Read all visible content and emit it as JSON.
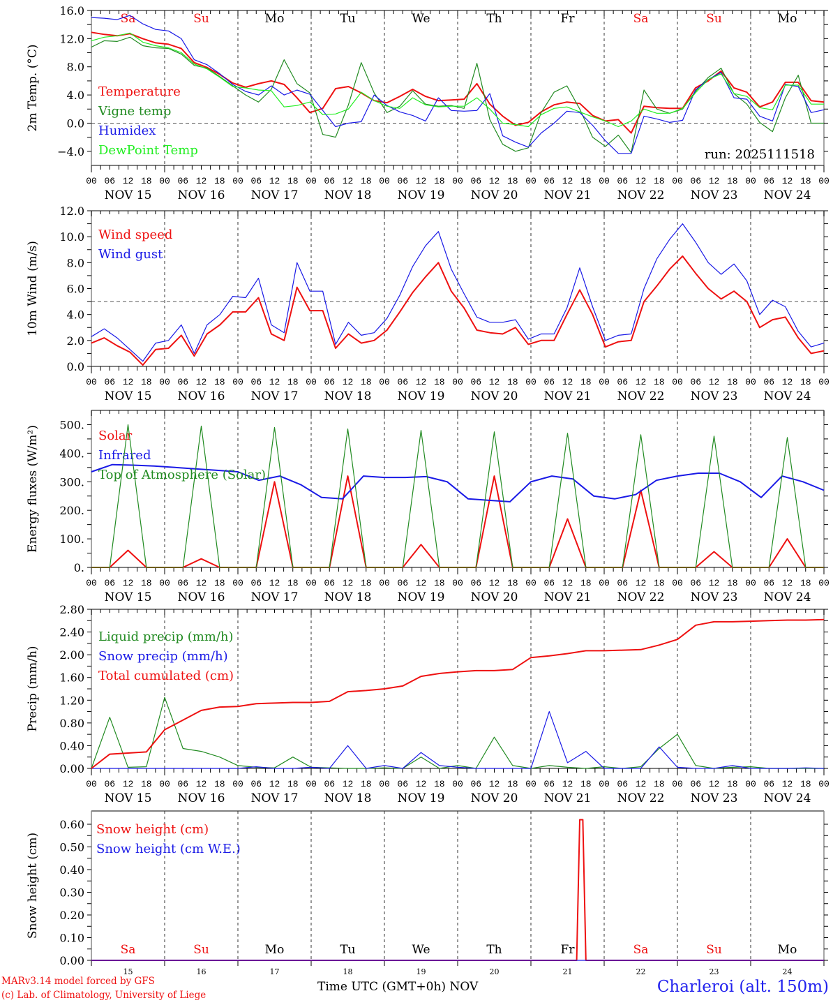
{
  "colors": {
    "red": "#ee1111",
    "green": "#228b22",
    "blue": "#1a1ae6",
    "lime": "#22ee22",
    "weekend": "#ee1111",
    "weekday": "#000000"
  },
  "days": [
    {
      "dow": "Sa",
      "date": "NOV 15",
      "num": "15",
      "weekend": true
    },
    {
      "dow": "Su",
      "date": "NOV 16",
      "num": "16",
      "weekend": true
    },
    {
      "dow": "Mo",
      "date": "NOV 17",
      "num": "17",
      "weekend": false
    },
    {
      "dow": "Tu",
      "date": "NOV 18",
      "num": "18",
      "weekend": false
    },
    {
      "dow": "We",
      "date": "NOV 19",
      "num": "19",
      "weekend": false
    },
    {
      "dow": "Th",
      "date": "NOV 20",
      "num": "20",
      "weekend": false
    },
    {
      "dow": "Fr",
      "date": "NOV 21",
      "num": "21",
      "weekend": false
    },
    {
      "dow": "Sa",
      "date": "NOV 22",
      "num": "22",
      "weekend": true
    },
    {
      "dow": "Su",
      "date": "NOV 23",
      "num": "23",
      "weekend": true
    },
    {
      "dow": "Mo",
      "date": "NOV 24",
      "num": "24",
      "weekend": false
    }
  ],
  "hour_ticks": [
    "00",
    "06",
    "12",
    "18"
  ],
  "final_tick": "00",
  "run_label": "run: 2025111518",
  "footer": {
    "model": "MARv3.14 model forced by GFS",
    "copyright": "(c) Lab. of Climatology, University of Liege",
    "xtitle": "Time UTC (GMT+0h)",
    "month": "NOV",
    "place": "Charleroi (alt. 150m)"
  },
  "chart_data": [
    {
      "type": "line",
      "ylabel": "2m Temp. (°C)",
      "ylim": [
        -6,
        16
      ],
      "yticks": [
        "16.0",
        "12.0",
        "8.0",
        "4.0",
        "0.0",
        "−4.0"
      ],
      "ytick_values": [
        16,
        12,
        8,
        4,
        0,
        -4
      ],
      "reference_line": 0,
      "x_step_hours": 6,
      "x_start": "NOV 15 00",
      "series": [
        {
          "name": "Temperature",
          "color": "red",
          "values": [
            12.9,
            12.6,
            12.4,
            12.7,
            12.0,
            11.4,
            11.2,
            10.6,
            8.6,
            7.9,
            6.9,
            5.7,
            5.1,
            5.6,
            6.0,
            5.5,
            3.6,
            1.5,
            2.1,
            4.9,
            5.2,
            4.3,
            3.2,
            2.9,
            3.8,
            4.8,
            3.8,
            3.2,
            3.3,
            3.4,
            5.6,
            2.7,
            1.0,
            -0.3,
            0.1,
            1.6,
            2.6,
            3.0,
            2.8,
            1.1,
            0.3,
            0.5,
            -1.4,
            2.4,
            2.2,
            2.1,
            2.1,
            5.0,
            6.0,
            7.4,
            5.0,
            4.4,
            2.3,
            3.0,
            5.8,
            5.8,
            3.2,
            3.0
          ]
        },
        {
          "name": "Vigne temp",
          "color": "green",
          "values": [
            10.8,
            11.7,
            11.6,
            12.2,
            11.0,
            10.7,
            10.6,
            9.8,
            8.2,
            7.8,
            6.6,
            5.3,
            4.0,
            3.0,
            4.8,
            9.0,
            5.6,
            4.3,
            -1.6,
            -2.0,
            2.6,
            8.6,
            4.3,
            1.5,
            2.4,
            4.6,
            2.7,
            2.4,
            2.5,
            2.1,
            8.5,
            0.5,
            -3.0,
            -4.0,
            -3.5,
            1.5,
            4.4,
            5.3,
            2.0,
            -2.0,
            -3.3,
            -1.7,
            -4.2,
            4.7,
            2.0,
            1.4,
            2.0,
            4.5,
            6.5,
            7.8,
            4.2,
            2.7,
            0.1,
            -1.2,
            3.6,
            6.8,
            0.0,
            0.0
          ]
        },
        {
          "name": "Humidex",
          "color": "blue",
          "values": [
            15.0,
            14.9,
            14.7,
            15.3,
            14.1,
            13.3,
            13.1,
            12.0,
            9.0,
            8.3,
            7.0,
            5.5,
            4.5,
            4.0,
            5.3,
            4.0,
            4.7,
            4.1,
            1.8,
            -0.5,
            0.0,
            0.2,
            4.0,
            2.5,
            1.6,
            1.1,
            0.3,
            3.6,
            1.8,
            1.7,
            1.8,
            4.2,
            -1.8,
            -2.7,
            -3.4,
            -1.4,
            0.0,
            1.7,
            1.5,
            -0.3,
            -2.5,
            -4.3,
            -4.3,
            1.0,
            0.6,
            0.1,
            0.4,
            4.7,
            6.2,
            7.2,
            3.6,
            3.4,
            1.0,
            0.3,
            5.5,
            5.2,
            1.5,
            1.9
          ]
        },
        {
          "name": "DewPoint Temp",
          "color": "lime",
          "values": [
            11.7,
            12.2,
            12.4,
            12.8,
            11.5,
            11.0,
            10.7,
            10.0,
            8.4,
            7.7,
            6.5,
            5.2,
            5.0,
            4.7,
            4.6,
            2.3,
            2.5,
            3.0,
            1.2,
            1.3,
            2.0,
            4.4,
            3.2,
            2.4,
            2.1,
            3.6,
            2.6,
            2.3,
            2.4,
            2.4,
            3.6,
            2.0,
            0.0,
            -0.2,
            -0.5,
            1.2,
            2.1,
            2.3,
            1.6,
            0.9,
            0.3,
            -0.5,
            0.3,
            2.0,
            1.4,
            1.4,
            2.1,
            4.3,
            6.2,
            7.0,
            4.2,
            3.8,
            2.2,
            1.9,
            5.4,
            5.4,
            2.7,
            2.7
          ]
        }
      ]
    },
    {
      "type": "line",
      "ylabel": "10m Wind (m/s)",
      "ylim": [
        0,
        12
      ],
      "yticks": [
        "12.0",
        "10.0",
        "8.0",
        "6.0",
        "4.0",
        "2.0",
        "0.0"
      ],
      "ytick_values": [
        12,
        10,
        8,
        6,
        4,
        2,
        0
      ],
      "reference_line": 5,
      "x_step_hours": 6,
      "x_start": "NOV 15 00",
      "series": [
        {
          "name": "Wind speed",
          "color": "red",
          "values": [
            1.8,
            2.2,
            1.6,
            1.1,
            0.1,
            1.3,
            1.4,
            2.4,
            0.8,
            2.5,
            3.2,
            4.2,
            4.2,
            5.3,
            2.5,
            2.0,
            6.1,
            4.3,
            4.3,
            1.4,
            2.5,
            1.8,
            2.0,
            2.8,
            4.2,
            5.7,
            6.9,
            8.0,
            5.8,
            4.5,
            2.8,
            2.6,
            2.5,
            3.0,
            1.7,
            2.0,
            2.0,
            4.0,
            5.9,
            4.0,
            1.5,
            1.9,
            2.0,
            5.0,
            6.2,
            7.5,
            8.5,
            7.2,
            6.0,
            5.2,
            5.8,
            5.0,
            3.0,
            3.6,
            3.8,
            2.2,
            1.0,
            1.2
          ]
        },
        {
          "name": "Wind gust",
          "color": "blue",
          "values": [
            2.3,
            2.9,
            2.2,
            1.3,
            0.4,
            1.8,
            2.0,
            3.2,
            1.0,
            3.2,
            4.0,
            5.4,
            5.3,
            6.8,
            3.2,
            2.6,
            8.0,
            5.8,
            5.8,
            1.7,
            3.4,
            2.4,
            2.6,
            3.7,
            5.5,
            7.7,
            9.3,
            10.4,
            7.5,
            5.6,
            3.8,
            3.4,
            3.4,
            3.6,
            2.1,
            2.5,
            2.5,
            4.5,
            7.6,
            4.6,
            2.0,
            2.4,
            2.5,
            6.0,
            8.3,
            9.8,
            11.0,
            9.6,
            8.0,
            7.1,
            7.9,
            6.6,
            4.0,
            5.1,
            4.6,
            2.7,
            1.5,
            1.8
          ]
        }
      ]
    },
    {
      "type": "line",
      "ylabel": "Energy fluxes (W/m²)",
      "ylim": [
        0,
        550
      ],
      "yticks": [
        "500.",
        "400.",
        "300.",
        "200.",
        "100.",
        "0."
      ],
      "ytick_values": [
        500,
        400,
        300,
        200,
        100,
        0
      ],
      "x_step_hours": 6,
      "x_start": "NOV 15 00",
      "series": [
        {
          "name": "Solar",
          "color": "red",
          "values": [
            0,
            0,
            60,
            0,
            0,
            0,
            30,
            0,
            0,
            0,
            300,
            0,
            0,
            0,
            320,
            0,
            0,
            0,
            80,
            0,
            0,
            0,
            320,
            0,
            0,
            0,
            170,
            0,
            0,
            0,
            270,
            0,
            0,
            0,
            55,
            0,
            0,
            0,
            100,
            0,
            0
          ]
        },
        {
          "name": "Infrared",
          "color": "blue",
          "values": [
            335,
            360,
            358,
            355,
            350,
            345,
            340,
            335,
            305,
            320,
            290,
            245,
            240,
            320,
            315,
            315,
            318,
            300,
            240,
            235,
            230,
            300,
            320,
            310,
            250,
            240,
            255,
            305,
            320,
            330,
            330,
            300,
            245,
            320,
            300,
            270
          ]
        },
        {
          "name": "Top of Atmosphere (Solar)",
          "color": "green",
          "values": [
            0,
            0,
            500,
            0,
            0,
            0,
            495,
            0,
            0,
            0,
            490,
            0,
            0,
            0,
            485,
            0,
            0,
            0,
            480,
            0,
            0,
            0,
            475,
            0,
            0,
            0,
            470,
            0,
            0,
            0,
            465,
            0,
            0,
            0,
            460,
            0,
            0,
            0,
            455,
            0,
            0
          ]
        }
      ]
    },
    {
      "type": "line",
      "ylabel": "Precip (mm/h)",
      "ylim": [
        0,
        2.8
      ],
      "yticks": [
        "2.80",
        "2.40",
        "2.00",
        "1.60",
        "1.20",
        "0.80",
        "0.40",
        "0.00"
      ],
      "ytick_values": [
        2.8,
        2.4,
        2.0,
        1.6,
        1.2,
        0.8,
        0.4,
        0.0
      ],
      "x_step_hours": 6,
      "x_start": "NOV 15 00",
      "series": [
        {
          "name": "Liquid precip (mm/h)",
          "color": "green",
          "values": [
            0,
            0.9,
            0.02,
            0.03,
            1.25,
            0.35,
            0.3,
            0.2,
            0.05,
            0.02,
            0.01,
            0.2,
            0.02,
            0.01,
            0.0,
            0.0,
            0.01,
            0.0,
            0.2,
            0.0,
            0.05,
            0.0,
            0.55,
            0.05,
            0.0,
            0.05,
            0.02,
            0.0,
            0.03,
            0.0,
            0.03,
            0.35,
            0.6,
            0.05,
            0.0,
            0.02,
            0.03,
            0.0,
            0.0,
            0.0,
            0.0
          ]
        },
        {
          "name": "Snow precip (mm/h)",
          "color": "blue",
          "values": [
            0,
            0,
            0,
            0,
            0,
            0,
            0,
            0,
            0,
            0.03,
            0.0,
            0.0,
            0.02,
            0.0,
            0.4,
            0.0,
            0.05,
            0.0,
            0.28,
            0.05,
            0.02,
            0.0,
            0.0,
            0.0,
            0.0,
            1.0,
            0.1,
            0.3,
            0.0,
            0.0,
            0.0,
            0.38,
            0.02,
            0.0,
            0.0,
            0.05,
            0.0,
            0.0,
            0.0,
            0.01,
            0.0
          ]
        },
        {
          "name": "Total cumulated (cm)",
          "color": "red",
          "values": [
            0,
            0.25,
            0.27,
            0.29,
            0.68,
            0.85,
            1.02,
            1.08,
            1.09,
            1.14,
            1.15,
            1.16,
            1.16,
            1.18,
            1.35,
            1.37,
            1.4,
            1.45,
            1.62,
            1.67,
            1.7,
            1.72,
            1.72,
            1.74,
            1.95,
            1.98,
            2.02,
            2.07,
            2.07,
            2.08,
            2.09,
            2.17,
            2.27,
            2.52,
            2.58,
            2.58,
            2.59,
            2.6,
            2.61,
            2.61,
            2.62
          ]
        }
      ]
    },
    {
      "type": "line",
      "ylabel": "Snow height (cm)",
      "ylim": [
        0,
        0.64
      ],
      "yticks": [
        "0.60",
        "0.50",
        "0.40",
        "0.30",
        "0.20",
        "0.10",
        "0.00"
      ],
      "ytick_values": [
        0.6,
        0.5,
        0.4,
        0.3,
        0.2,
        0.1,
        0.0
      ],
      "xlabel": "Time UTC (GMT+0h)",
      "series": [
        {
          "name": "Snow height (cm)",
          "color": "red",
          "spike_at_hours": [
            [
              0,
              0
            ],
            [
              159,
              0
            ],
            [
              160,
              0.62
            ],
            [
              161,
              0.62
            ],
            [
              162,
              0
            ],
            [
              240,
              0
            ]
          ]
        },
        {
          "name": "Snow height (cm W.E.)",
          "color": "blue",
          "spike_at_hours": [
            [
              0,
              0
            ],
            [
              240,
              0
            ]
          ]
        }
      ]
    }
  ]
}
